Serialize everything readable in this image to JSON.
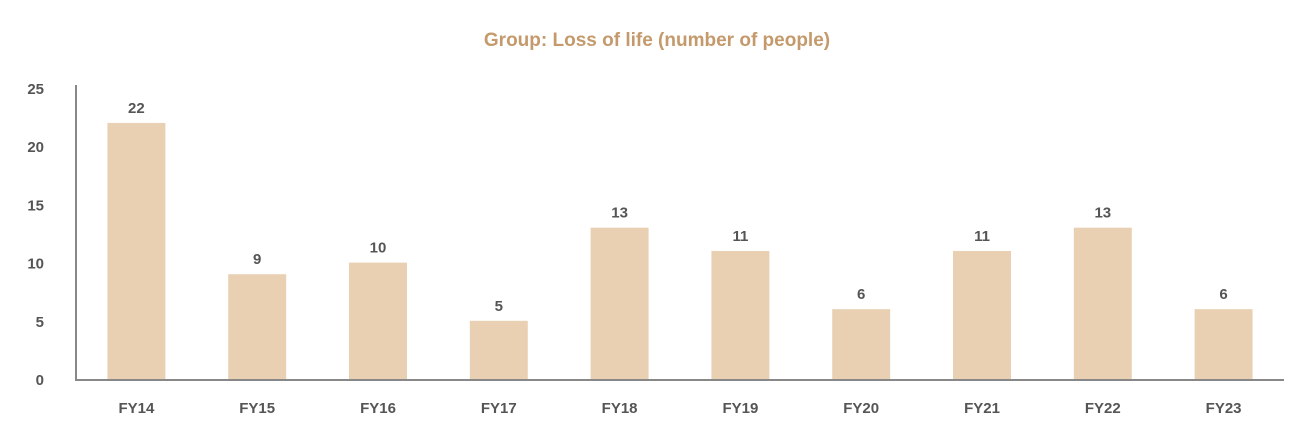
{
  "chart_data": {
    "type": "bar",
    "title": "Group: Loss of life (number of people)",
    "xlabel": "",
    "ylabel": "",
    "categories": [
      "FY14",
      "FY15",
      "FY16",
      "FY17",
      "FY18",
      "FY19",
      "FY20",
      "FY21",
      "FY22",
      "FY23"
    ],
    "values": [
      22,
      9,
      10,
      5,
      13,
      11,
      6,
      11,
      13,
      6
    ],
    "ylim": [
      0,
      25
    ],
    "yticks": [
      0,
      5,
      10,
      15,
      20,
      25
    ],
    "grid": false,
    "data_labels": true,
    "colors": {
      "bar": "#E9D0B3",
      "title": "#C49A6C",
      "text": "#555555",
      "axis": "#888888"
    }
  }
}
